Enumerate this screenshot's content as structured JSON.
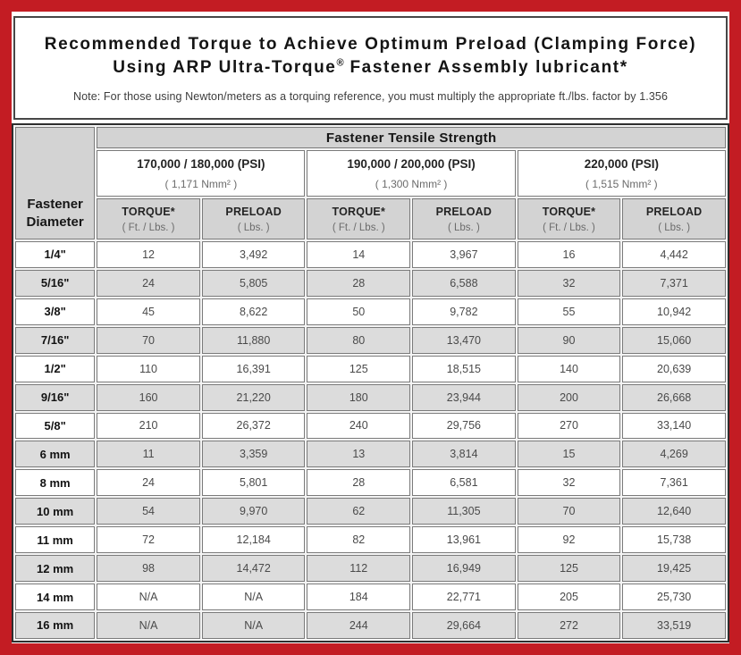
{
  "title": {
    "line1": "Recommended Torque to Achieve Optimum Preload (Clamping Force)",
    "line2_pre": "Using ARP Ultra-Torque",
    "line2_sup": "®",
    "line2_post": " Fastener Assembly lubricant*",
    "note": "Note: For those using Newton/meters as a torquing reference, you must multiply the appropriate ft./lbs. factor by 1.356"
  },
  "colors": {
    "frame_red": "#c31c23",
    "header_gray": "#d3d3d3",
    "row_alt_gray": "#dcdcdc"
  },
  "table": {
    "tensile_header": "Fastener Tensile Strength",
    "diameter_header": "Fastener Diameter",
    "groups": [
      {
        "psi": "170,000 / 180,000 (PSI)",
        "nmm": "( 1,171 Nmm² )"
      },
      {
        "psi": "190,000 / 200,000 (PSI)",
        "nmm": "( 1,300 Nmm² )"
      },
      {
        "psi": "220,000 (PSI)",
        "nmm": "( 1,515 Nmm² )"
      }
    ],
    "col_headers": {
      "torque": "TORQUE*",
      "torque_unit": "( Ft. / Lbs. )",
      "preload": "PRELOAD",
      "preload_unit": "( Lbs. )"
    },
    "rows": [
      {
        "diameter": "1/4\"",
        "values": [
          "12",
          "3,492",
          "14",
          "3,967",
          "16",
          "4,442"
        ]
      },
      {
        "diameter": "5/16\"",
        "values": [
          "24",
          "5,805",
          "28",
          "6,588",
          "32",
          "7,371"
        ]
      },
      {
        "diameter": "3/8\"",
        "values": [
          "45",
          "8,622",
          "50",
          "9,782",
          "55",
          "10,942"
        ]
      },
      {
        "diameter": "7/16\"",
        "values": [
          "70",
          "11,880",
          "80",
          "13,470",
          "90",
          "15,060"
        ]
      },
      {
        "diameter": "1/2\"",
        "values": [
          "110",
          "16,391",
          "125",
          "18,515",
          "140",
          "20,639"
        ]
      },
      {
        "diameter": "9/16\"",
        "values": [
          "160",
          "21,220",
          "180",
          "23,944",
          "200",
          "26,668"
        ]
      },
      {
        "diameter": "5/8\"",
        "values": [
          "210",
          "26,372",
          "240",
          "29,756",
          "270",
          "33,140"
        ]
      },
      {
        "diameter": "6 mm",
        "values": [
          "11",
          "3,359",
          "13",
          "3,814",
          "15",
          "4,269"
        ]
      },
      {
        "diameter": "8 mm",
        "values": [
          "24",
          "5,801",
          "28",
          "6,581",
          "32",
          "7,361"
        ]
      },
      {
        "diameter": "10 mm",
        "values": [
          "54",
          "9,970",
          "62",
          "11,305",
          "70",
          "12,640"
        ]
      },
      {
        "diameter": "11 mm",
        "values": [
          "72",
          "12,184",
          "82",
          "13,961",
          "92",
          "15,738"
        ]
      },
      {
        "diameter": "12 mm",
        "values": [
          "98",
          "14,472",
          "112",
          "16,949",
          "125",
          "19,425"
        ]
      },
      {
        "diameter": "14 mm",
        "values": [
          "N/A",
          "N/A",
          "184",
          "22,771",
          "205",
          "25,730"
        ]
      },
      {
        "diameter": "16 mm",
        "values": [
          "N/A",
          "N/A",
          "244",
          "29,664",
          "272",
          "33,519"
        ]
      }
    ]
  }
}
